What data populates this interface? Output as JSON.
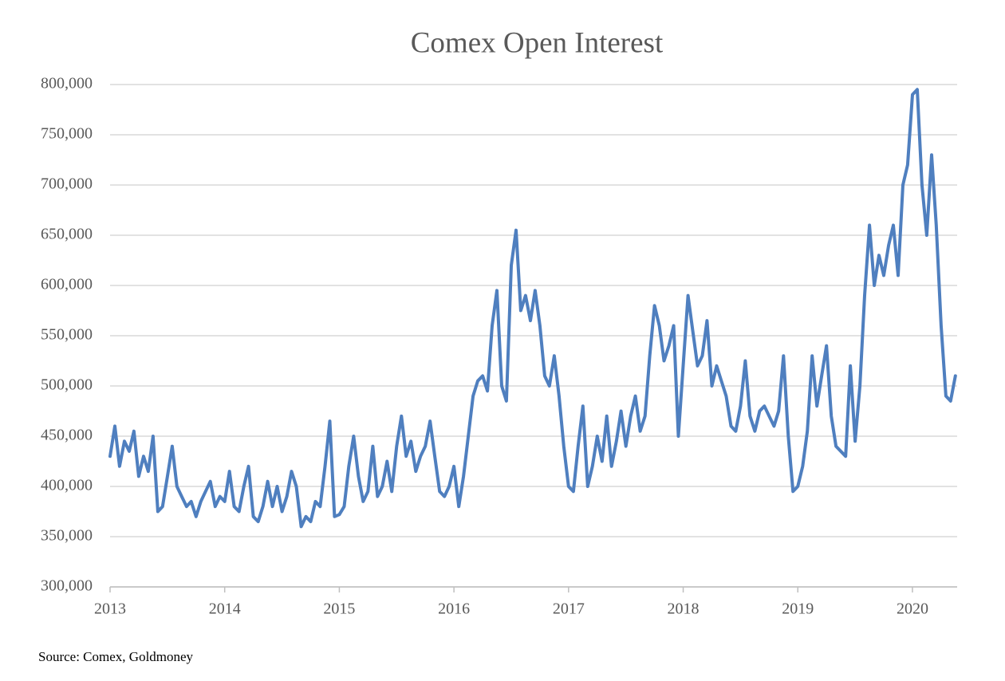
{
  "chart_data": {
    "type": "line",
    "title": "Comex Open Interest",
    "source": "Source: Comex, Goldmoney",
    "xlim": [
      2013,
      2020.39
    ],
    "xticks": [
      2013,
      2014,
      2015,
      2016,
      2017,
      2018,
      2019,
      2020
    ],
    "ylim": [
      300000,
      800000
    ],
    "yticks": [
      {
        "value": 300000,
        "label": "300,000"
      },
      {
        "value": 350000,
        "label": "350,000"
      },
      {
        "value": 400000,
        "label": "400,000"
      },
      {
        "value": 450000,
        "label": "450,000"
      },
      {
        "value": 500000,
        "label": "500,000"
      },
      {
        "value": 550000,
        "label": "550,000"
      },
      {
        "value": 600000,
        "label": "600,000"
      },
      {
        "value": 650000,
        "label": "650,000"
      },
      {
        "value": 700000,
        "label": "700,000"
      },
      {
        "value": 750000,
        "label": "750,000"
      },
      {
        "value": 800000,
        "label": "800,000"
      }
    ],
    "grid": true,
    "x": [
      2013,
      2013.042,
      2013.083,
      2013.125,
      2013.167,
      2013.208,
      2013.25,
      2013.292,
      2013.333,
      2013.375,
      2013.417,
      2013.458,
      2013.5,
      2013.542,
      2013.583,
      2013.625,
      2013.667,
      2013.708,
      2013.75,
      2013.792,
      2013.833,
      2013.875,
      2013.917,
      2013.958,
      2014,
      2014.042,
      2014.083,
      2014.125,
      2014.167,
      2014.208,
      2014.25,
      2014.292,
      2014.333,
      2014.375,
      2014.417,
      2014.458,
      2014.5,
      2014.542,
      2014.583,
      2014.625,
      2014.667,
      2014.708,
      2014.75,
      2014.792,
      2014.833,
      2014.875,
      2014.917,
      2014.958,
      2015,
      2015.042,
      2015.083,
      2015.125,
      2015.167,
      2015.208,
      2015.25,
      2015.292,
      2015.333,
      2015.375,
      2015.417,
      2015.458,
      2015.5,
      2015.542,
      2015.583,
      2015.625,
      2015.667,
      2015.708,
      2015.75,
      2015.792,
      2015.833,
      2015.875,
      2015.917,
      2015.958,
      2016,
      2016.042,
      2016.083,
      2016.125,
      2016.167,
      2016.208,
      2016.25,
      2016.292,
      2016.333,
      2016.375,
      2016.417,
      2016.458,
      2016.5,
      2016.542,
      2016.583,
      2016.625,
      2016.667,
      2016.708,
      2016.75,
      2016.792,
      2016.833,
      2016.875,
      2016.917,
      2016.958,
      2017,
      2017.042,
      2017.083,
      2017.125,
      2017.167,
      2017.208,
      2017.25,
      2017.292,
      2017.333,
      2017.375,
      2017.417,
      2017.458,
      2017.5,
      2017.542,
      2017.583,
      2017.625,
      2017.667,
      2017.708,
      2017.75,
      2017.792,
      2017.833,
      2017.875,
      2017.917,
      2017.958,
      2018,
      2018.042,
      2018.083,
      2018.125,
      2018.167,
      2018.208,
      2018.25,
      2018.292,
      2018.333,
      2018.375,
      2018.417,
      2018.458,
      2018.5,
      2018.542,
      2018.583,
      2018.625,
      2018.667,
      2018.708,
      2018.75,
      2018.792,
      2018.833,
      2018.875,
      2018.917,
      2018.958,
      2019,
      2019.042,
      2019.083,
      2019.125,
      2019.167,
      2019.208,
      2019.25,
      2019.292,
      2019.333,
      2019.375,
      2019.417,
      2019.458,
      2019.5,
      2019.542,
      2019.583,
      2019.625,
      2019.667,
      2019.708,
      2019.75,
      2019.792,
      2019.833,
      2019.875,
      2019.917,
      2019.958,
      2020,
      2020.042,
      2020.083,
      2020.125,
      2020.167,
      2020.208,
      2020.25,
      2020.292,
      2020.333,
      2020.375
    ],
    "series": [
      {
        "color": "#4f7fbf",
        "values": [
          430000,
          460000,
          420000,
          445000,
          435000,
          455000,
          410000,
          430000,
          415000,
          450000,
          375000,
          380000,
          410000,
          440000,
          400000,
          390000,
          380000,
          385000,
          370000,
          385000,
          395000,
          405000,
          380000,
          390000,
          385000,
          415000,
          380000,
          375000,
          400000,
          420000,
          370000,
          365000,
          380000,
          405000,
          380000,
          400000,
          375000,
          390000,
          415000,
          400000,
          360000,
          370000,
          365000,
          385000,
          380000,
          420000,
          465000,
          370000,
          372000,
          380000,
          420000,
          450000,
          410000,
          385000,
          395000,
          440000,
          390000,
          400000,
          425000,
          395000,
          440000,
          470000,
          430000,
          445000,
          415000,
          430000,
          440000,
          465000,
          430000,
          395000,
          390000,
          400000,
          420000,
          380000,
          410000,
          450000,
          490000,
          505000,
          510000,
          495000,
          560000,
          595000,
          500000,
          485000,
          620000,
          655000,
          575000,
          590000,
          565000,
          595000,
          560000,
          510000,
          500000,
          530000,
          490000,
          440000,
          400000,
          395000,
          440000,
          480000,
          400000,
          420000,
          450000,
          425000,
          470000,
          420000,
          445000,
          475000,
          440000,
          470000,
          490000,
          455000,
          470000,
          530000,
          580000,
          560000,
          525000,
          540000,
          560000,
          450000,
          520000,
          590000,
          555000,
          520000,
          530000,
          565000,
          500000,
          520000,
          505000,
          490000,
          460000,
          455000,
          480000,
          525000,
          470000,
          455000,
          475000,
          480000,
          470000,
          460000,
          475000,
          530000,
          450000,
          395000,
          400000,
          420000,
          455000,
          530000,
          480000,
          510000,
          540000,
          470000,
          440000,
          435000,
          430000,
          520000,
          445000,
          500000,
          590000,
          660000,
          600000,
          630000,
          610000,
          640000,
          660000,
          610000,
          700000,
          720000,
          790000,
          795000,
          700000,
          650000,
          730000,
          660000,
          560000,
          490000,
          485000,
          510000
        ]
      }
    ]
  }
}
